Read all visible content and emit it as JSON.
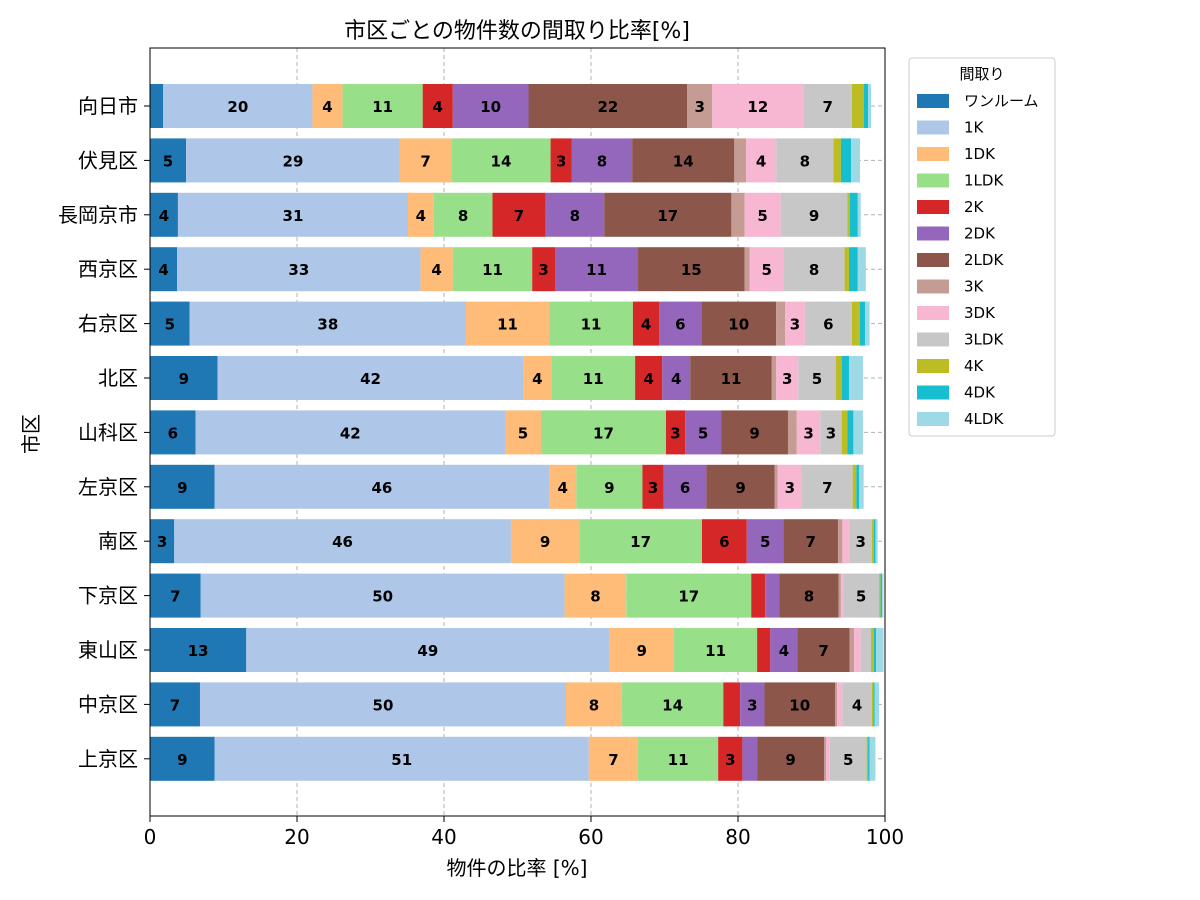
{
  "chart_data": {
    "type": "bar",
    "orientation": "horizontal-stacked",
    "title": "市区ごとの物件数の間取り比率[%]",
    "xlabel": "物件の比率 [%]",
    "ylabel": "市区",
    "xlim": [
      0,
      100
    ],
    "xticks": [
      "0",
      "20",
      "40",
      "60",
      "80",
      "100"
    ],
    "grid": true,
    "legend_title": "間取り",
    "legend_position": "outside-right",
    "categories": [
      "向日市",
      "伏見区",
      "長岡京市",
      "西京区",
      "右京区",
      "北区",
      "山科区",
      "左京区",
      "南区",
      "下京区",
      "東山区",
      "中京区",
      "上京区"
    ],
    "series": [
      {
        "name": "ワンルーム",
        "color": "#1f77b4",
        "values": [
          1.8,
          4.9,
          3.8,
          3.7,
          5.4,
          9.2,
          6.2,
          8.8,
          3.3,
          6.9,
          13.1,
          6.8,
          8.8
        ]
      },
      {
        "name": "1K",
        "color": "#aec7e8",
        "values": [
          20.3,
          29.1,
          31.3,
          33.1,
          37.6,
          41.6,
          42.1,
          45.5,
          45.8,
          49.5,
          49.4,
          49.8,
          50.9
        ]
      },
      {
        "name": "1DK",
        "color": "#ffbb78",
        "values": [
          4.1,
          7.0,
          3.5,
          4.4,
          11.3,
          3.8,
          4.9,
          3.7,
          9.3,
          8.4,
          8.8,
          7.6,
          6.7
        ]
      },
      {
        "name": "1LDK",
        "color": "#98df8a",
        "values": [
          10.9,
          13.5,
          8.0,
          10.8,
          11.4,
          11.4,
          17.0,
          9.0,
          16.7,
          17.0,
          11.3,
          13.8,
          10.9
        ]
      },
      {
        "name": "2K",
        "color": "#d62728",
        "values": [
          4.1,
          2.9,
          7.2,
          3.1,
          3.6,
          3.7,
          2.6,
          2.9,
          6.1,
          1.9,
          1.8,
          2.3,
          3.3
        ]
      },
      {
        "name": "2DK",
        "color": "#9467bd",
        "values": [
          10.3,
          8.2,
          8.0,
          11.3,
          5.7,
          3.8,
          4.9,
          5.8,
          5.0,
          1.9,
          3.7,
          3.3,
          2.0
        ]
      },
      {
        "name": "2LDK",
        "color": "#8c564b",
        "values": [
          21.6,
          13.9,
          17.3,
          14.5,
          10.2,
          11.1,
          9.1,
          9.3,
          7.4,
          8.1,
          7.1,
          9.6,
          9.1
        ]
      },
      {
        "name": "3K",
        "color": "#c49c94",
        "values": [
          3.4,
          1.6,
          1.8,
          0.7,
          1.2,
          0.6,
          1.2,
          0.4,
          0.6,
          0.3,
          0.6,
          0.3,
          0.3
        ]
      },
      {
        "name": "3DK",
        "color": "#f7b6d2",
        "values": [
          12.4,
          4.1,
          4.9,
          4.6,
          2.7,
          3.0,
          3.2,
          3.3,
          1.0,
          0.3,
          0.9,
          0.7,
          0.5
        ]
      },
      {
        "name": "3LDK",
        "color": "#c7c7c7",
        "values": [
          6.6,
          7.8,
          9.1,
          8.3,
          6.4,
          5.1,
          2.9,
          6.9,
          3.0,
          4.9,
          1.4,
          4.0,
          5.0
        ]
      },
      {
        "name": "4K",
        "color": "#bcbd22",
        "values": [
          1.6,
          1.0,
          0.3,
          0.6,
          1.1,
          0.8,
          0.8,
          0.5,
          0.3,
          0.2,
          0.4,
          0.2,
          0.2
        ]
      },
      {
        "name": "4DK",
        "color": "#17becf",
        "values": [
          0.6,
          1.4,
          1.1,
          1.2,
          0.7,
          1.0,
          0.8,
          0.4,
          0.2,
          0.2,
          0.3,
          0.2,
          0.2
        ]
      },
      {
        "name": "4LDK",
        "color": "#9edae5",
        "values": [
          0.4,
          1.2,
          0.4,
          1.1,
          0.6,
          1.9,
          1.3,
          0.6,
          0.3,
          0.2,
          1.0,
          0.6,
          0.8
        ]
      }
    ],
    "label_threshold": 2.5
  }
}
